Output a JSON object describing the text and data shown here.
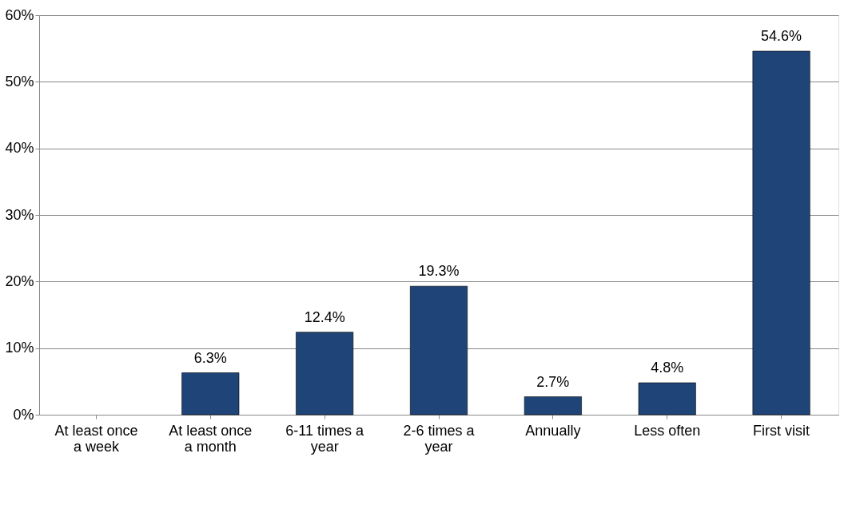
{
  "chart_data": {
    "type": "bar",
    "categories": [
      "At least once a week",
      "At least once a month",
      "6-11 times a year",
      "2-6 times a year",
      "Annually",
      "Less often",
      "First visit"
    ],
    "values": [
      null,
      6.3,
      12.4,
      19.3,
      2.7,
      4.8,
      54.6
    ],
    "value_labels": [
      null,
      "6.3%",
      "12.4%",
      "19.3%",
      "2.7%",
      "4.8%",
      "54.6%"
    ],
    "color": "#1f4477",
    "ylim": [
      0,
      60
    ],
    "yticks": [
      {
        "value": 0,
        "label": "0%"
      },
      {
        "value": 10,
        "label": "10%"
      },
      {
        "value": 20,
        "label": "20%"
      },
      {
        "value": 30,
        "label": "30%"
      },
      {
        "value": 40,
        "label": "40%"
      },
      {
        "value": 50,
        "label": "50%"
      },
      {
        "value": 60,
        "label": "60%"
      }
    ],
    "grid": "y"
  }
}
